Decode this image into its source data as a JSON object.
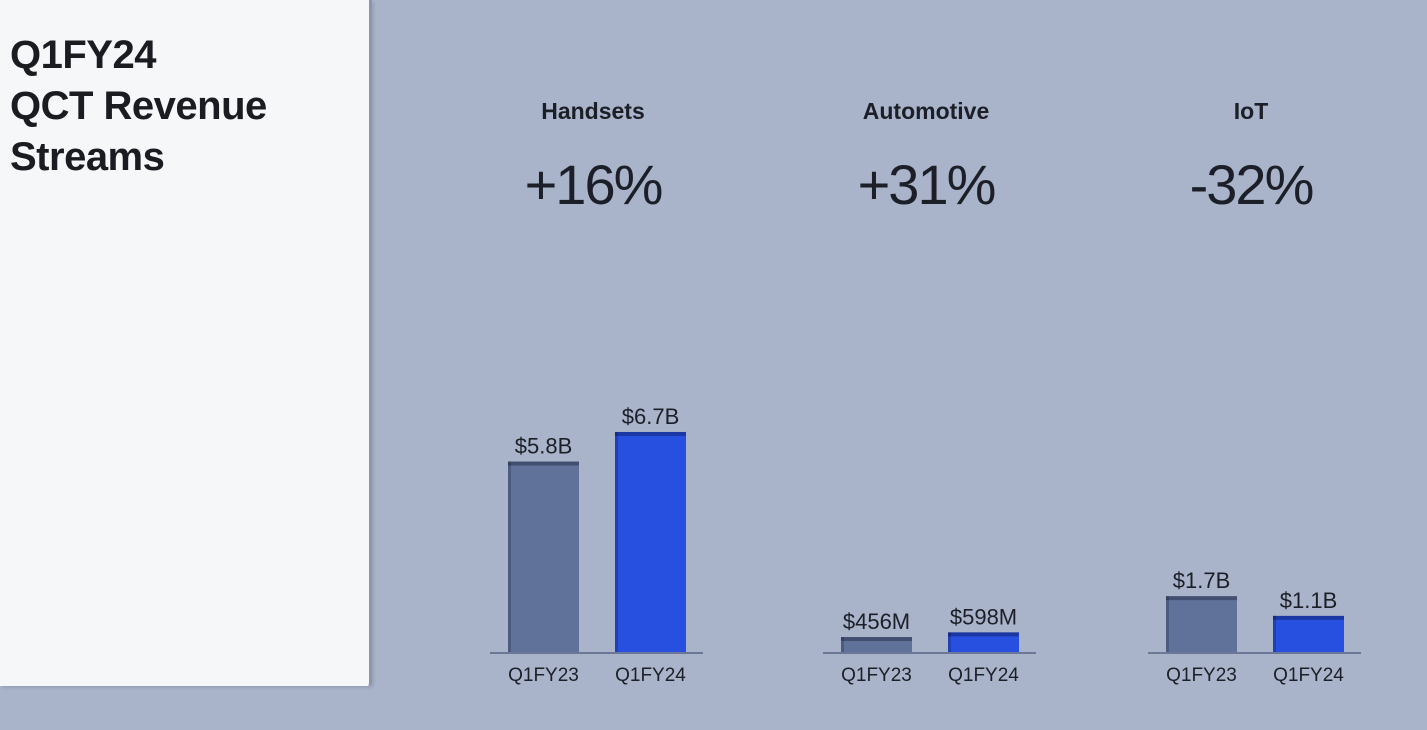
{
  "panel": {
    "title_lines": [
      "Q1FY24",
      "QCT Revenue",
      "Streams"
    ]
  },
  "colors": {
    "background": "#a9b4ca",
    "panel": "#f6f7f9",
    "bar_prior": "#61729a",
    "bar_current": "#2850e0",
    "baseline": "#6a7896",
    "text": "#1c1f27"
  },
  "chart_data": [
    {
      "type": "bar",
      "title": "Handsets",
      "change": "+16%",
      "categories": [
        "Q1FY23",
        "Q1FY24"
      ],
      "values": [
        5.8,
        6.7
      ],
      "data_labels": [
        "$5.8B",
        "$6.7B"
      ],
      "unit": "B"
    },
    {
      "type": "bar",
      "title": "Automotive",
      "change": "+31%",
      "categories": [
        "Q1FY23",
        "Q1FY24"
      ],
      "values": [
        0.456,
        0.598
      ],
      "data_labels": [
        "$456M",
        "$598M"
      ],
      "unit": "B"
    },
    {
      "type": "bar",
      "title": "IoT",
      "change": "-32%",
      "categories": [
        "Q1FY23",
        "Q1FY24"
      ],
      "values": [
        1.7,
        1.1
      ],
      "data_labels": [
        "$1.7B",
        "$1.1B"
      ],
      "unit": "B"
    }
  ]
}
